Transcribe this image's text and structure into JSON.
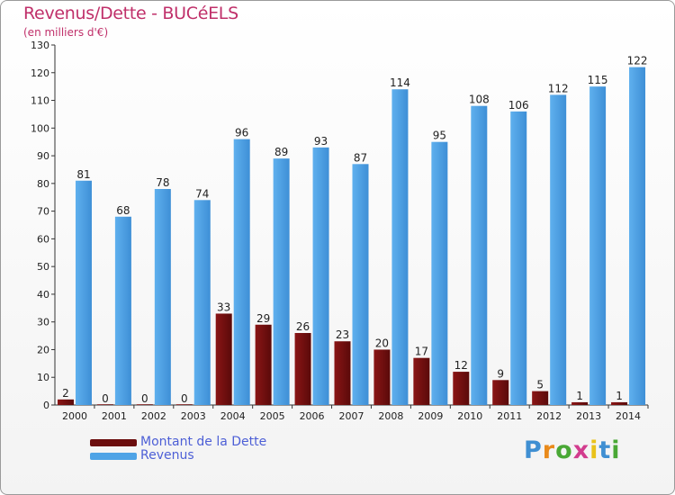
{
  "chart_data": {
    "type": "bar",
    "title": "Revenus/Dette - BUCéELS",
    "subtitle": "(en milliers d'€)",
    "categories": [
      "2000",
      "2001",
      "2002",
      "2003",
      "2004",
      "2005",
      "2006",
      "2007",
      "2008",
      "2009",
      "2010",
      "2011",
      "2012",
      "2013",
      "2014"
    ],
    "series": [
      {
        "name": "Montant de la Dette",
        "color": "#6b0d0d",
        "values": [
          2,
          0,
          0,
          0,
          33,
          29,
          26,
          23,
          20,
          17,
          12,
          9,
          5,
          1,
          1
        ]
      },
      {
        "name": "Revenus",
        "color": "#4ea3e6",
        "values": [
          81,
          68,
          78,
          74,
          96,
          89,
          93,
          87,
          114,
          95,
          108,
          106,
          112,
          115,
          122
        ]
      }
    ],
    "ylim": [
      0,
      130
    ],
    "yticks": [
      0,
      10,
      20,
      30,
      40,
      50,
      60,
      70,
      80,
      90,
      100,
      110,
      120,
      130
    ],
    "grid": false,
    "legend_position": "bottom-left"
  },
  "logo": {
    "letters": [
      {
        "char": "P",
        "color": "#3f8fd2"
      },
      {
        "char": "r",
        "color": "#e98a1a"
      },
      {
        "char": "o",
        "color": "#49a835"
      },
      {
        "char": "x",
        "color": "#d23c8e"
      },
      {
        "char": "i",
        "color": "#e9c21a"
      },
      {
        "char": "t",
        "color": "#3f8fd2"
      },
      {
        "char": "i",
        "color": "#49a835"
      }
    ]
  }
}
